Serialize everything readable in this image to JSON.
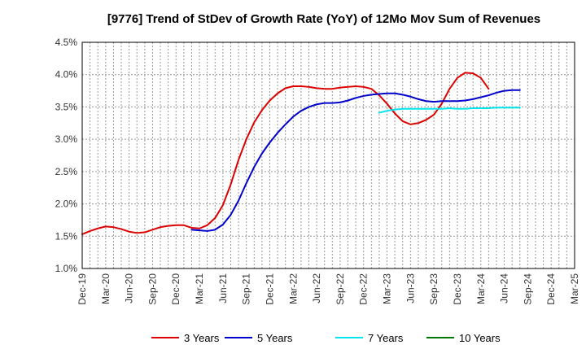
{
  "chart_data": {
    "type": "line",
    "title": "[9776]  Trend of StDev of Growth Rate (YoY) of 12Mo Mov Sum of Revenues",
    "xlabel": "",
    "ylabel": "",
    "ylim": [
      1.0,
      4.5
    ],
    "y_ticks": [
      1.0,
      1.5,
      2.0,
      2.5,
      3.0,
      3.5,
      4.0,
      4.5
    ],
    "y_tick_labels": [
      "1.0%",
      "1.5%",
      "2.0%",
      "2.5%",
      "3.0%",
      "3.5%",
      "4.0%",
      "4.5%"
    ],
    "x_tick_labels": [
      "Dec-19",
      "Mar-20",
      "Jun-20",
      "Sep-20",
      "Dec-20",
      "Mar-21",
      "Jun-21",
      "Sep-21",
      "Dec-21",
      "Mar-22",
      "Jun-22",
      "Sep-22",
      "Dec-22",
      "Mar-23",
      "Jun-23",
      "Sep-23",
      "Dec-23",
      "Mar-24",
      "Jun-24",
      "Sep-24",
      "Dec-24",
      "Mar-25"
    ],
    "grid": true,
    "legend_position": "bottom",
    "series": [
      {
        "name": "3 Years",
        "color": "#dd0000",
        "start_index": 0,
        "values": [
          1.53,
          1.58,
          1.62,
          1.65,
          1.64,
          1.61,
          1.57,
          1.55,
          1.56,
          1.6,
          1.64,
          1.66,
          1.67,
          1.67,
          1.63,
          1.62,
          1.67,
          1.78,
          1.98,
          2.3,
          2.68,
          3.0,
          3.26,
          3.45,
          3.6,
          3.71,
          3.79,
          3.82,
          3.82,
          3.81,
          3.79,
          3.78,
          3.78,
          3.8,
          3.81,
          3.82,
          3.81,
          3.78,
          3.68,
          3.55,
          3.4,
          3.28,
          3.23,
          3.25,
          3.3,
          3.38,
          3.55,
          3.78,
          3.95,
          4.03,
          4.02,
          3.95,
          3.78
        ]
      },
      {
        "name": "5 Years",
        "color": "#0000cc",
        "start_index": 14,
        "values": [
          1.6,
          1.59,
          1.58,
          1.6,
          1.68,
          1.83,
          2.05,
          2.32,
          2.57,
          2.78,
          2.95,
          3.1,
          3.23,
          3.35,
          3.44,
          3.5,
          3.54,
          3.56,
          3.56,
          3.57,
          3.6,
          3.64,
          3.67,
          3.69,
          3.7,
          3.71,
          3.71,
          3.69,
          3.66,
          3.62,
          3.59,
          3.58,
          3.59,
          3.59,
          3.59,
          3.6,
          3.62,
          3.65,
          3.68,
          3.72,
          3.75,
          3.76,
          3.76
        ]
      },
      {
        "name": "7 Years",
        "color": "#00e5ee",
        "start_index": 38,
        "values": [
          3.41,
          3.44,
          3.46,
          3.47,
          3.47,
          3.47,
          3.47,
          3.47,
          3.47,
          3.48,
          3.47,
          3.47,
          3.48,
          3.48,
          3.48,
          3.49,
          3.49,
          3.49,
          3.49
        ]
      },
      {
        "name": "10 Years",
        "color": "#007700",
        "start_index": 0,
        "values": []
      }
    ]
  }
}
